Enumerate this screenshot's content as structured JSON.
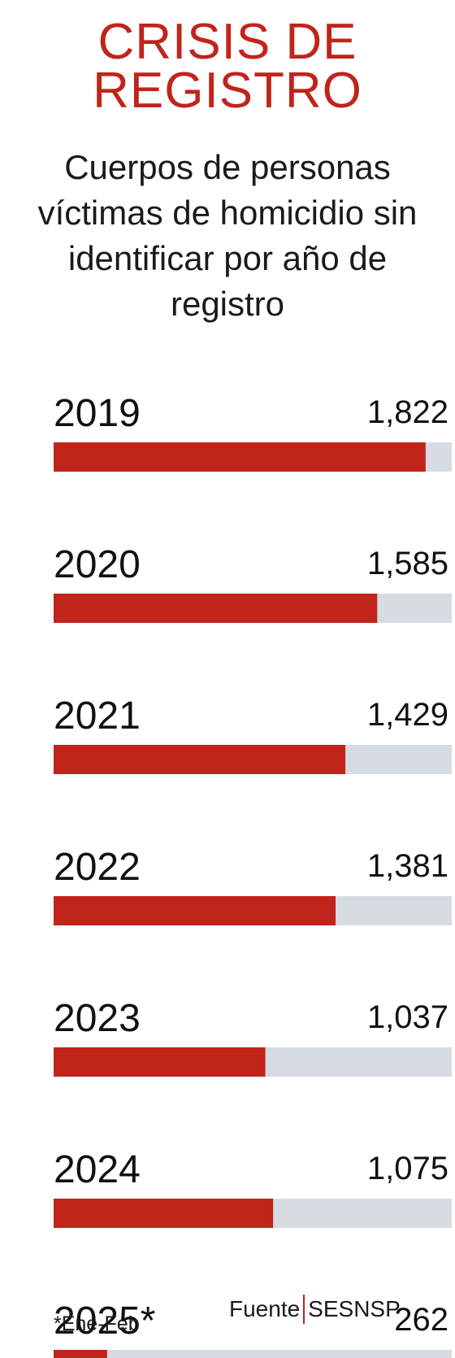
{
  "title": {
    "line1": "CRISIS DE",
    "line2": "REGISTRO"
  },
  "subtitle": "Cuerpos de personas víctimas de homicidio sin identificar por año de registro",
  "colors": {
    "bar": "#c0241b",
    "track": "#d6dce2",
    "title": "#c0241b"
  },
  "chart_data": {
    "type": "bar",
    "orientation": "horizontal",
    "title": "CRISIS DE REGISTRO",
    "subtitle": "Cuerpos de personas víctimas de homicidio sin identificar por año de registro",
    "categories": [
      "2019",
      "2020",
      "2021",
      "2022",
      "2023",
      "2024",
      "2025*"
    ],
    "values": [
      1822,
      1585,
      1429,
      1381,
      1037,
      1075,
      262
    ],
    "value_labels": [
      "1,822",
      "1,585",
      "1,429",
      "1,381",
      "1,037",
      "1,075",
      "262"
    ],
    "xlim": [
      0,
      1950
    ]
  },
  "footnote": "*Ene-Feb",
  "source": {
    "label": "Fuente",
    "name": "SESNSP"
  }
}
